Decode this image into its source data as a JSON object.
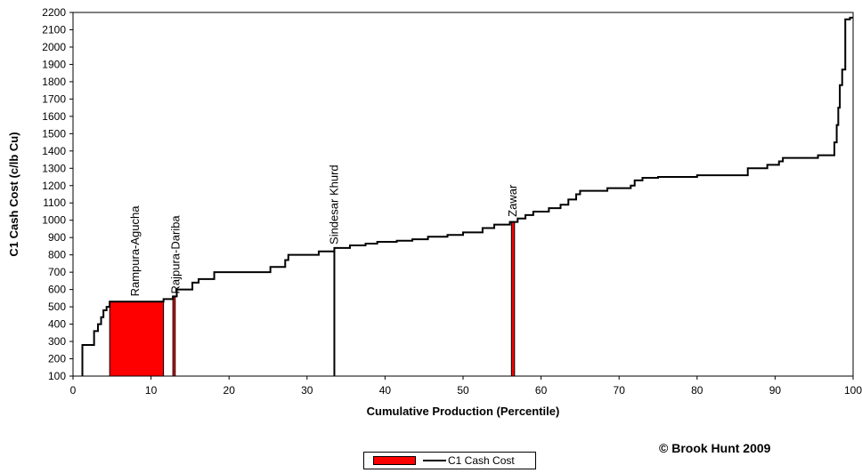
{
  "chart_data": {
    "type": "area",
    "title": "",
    "xlabel": "Cumulative Production (Percentile)",
    "ylabel": "C1 Cash Cost (c/lb Cu)",
    "xlim": [
      0,
      100
    ],
    "ylim": [
      100,
      2200
    ],
    "xticks": [
      0,
      10,
      20,
      30,
      40,
      50,
      60,
      70,
      80,
      90,
      100
    ],
    "yticks": [
      100,
      200,
      300,
      400,
      500,
      600,
      700,
      800,
      900,
      1000,
      1100,
      1200,
      1300,
      1400,
      1500,
      1600,
      1700,
      1800,
      1900,
      2000,
      2100,
      2200
    ],
    "grid": false,
    "legend_position": "bottom-center",
    "series": [
      {
        "name": "C1 Cash Cost",
        "color": "#000000",
        "steps": [
          [
            1.2,
            100
          ],
          [
            1.2,
            280
          ],
          [
            2.7,
            280
          ],
          [
            2.7,
            360
          ],
          [
            3.2,
            360
          ],
          [
            3.2,
            400
          ],
          [
            3.6,
            400
          ],
          [
            3.6,
            440
          ],
          [
            3.9,
            440
          ],
          [
            3.9,
            480
          ],
          [
            4.3,
            480
          ],
          [
            4.3,
            500
          ],
          [
            4.7,
            500
          ],
          [
            4.7,
            530
          ],
          [
            11.6,
            530
          ],
          [
            11.6,
            545
          ],
          [
            12.8,
            545
          ],
          [
            12.8,
            560
          ],
          [
            13.3,
            560
          ],
          [
            13.3,
            600
          ],
          [
            15.3,
            600
          ],
          [
            15.3,
            640
          ],
          [
            16.1,
            640
          ],
          [
            16.1,
            660
          ],
          [
            18.1,
            660
          ],
          [
            18.1,
            700
          ],
          [
            25.3,
            700
          ],
          [
            25.3,
            730
          ],
          [
            27.2,
            730
          ],
          [
            27.2,
            770
          ],
          [
            27.6,
            770
          ],
          [
            27.6,
            800
          ],
          [
            31.5,
            800
          ],
          [
            31.5,
            820
          ],
          [
            33.5,
            820
          ],
          [
            33.5,
            840
          ],
          [
            35.5,
            840
          ],
          [
            35.5,
            855
          ],
          [
            37.5,
            855
          ],
          [
            37.5,
            865
          ],
          [
            39.0,
            865
          ],
          [
            39.0,
            875
          ],
          [
            41.5,
            875
          ],
          [
            41.5,
            882
          ],
          [
            43.5,
            882
          ],
          [
            43.5,
            890
          ],
          [
            45.5,
            890
          ],
          [
            45.5,
            905
          ],
          [
            48.0,
            905
          ],
          [
            48.0,
            915
          ],
          [
            50.0,
            915
          ],
          [
            50.0,
            930
          ],
          [
            52.5,
            930
          ],
          [
            52.5,
            955
          ],
          [
            54.0,
            955
          ],
          [
            54.0,
            975
          ],
          [
            56.0,
            975
          ],
          [
            56.0,
            990
          ],
          [
            57.0,
            990
          ],
          [
            57.0,
            1010
          ],
          [
            58.0,
            1010
          ],
          [
            58.0,
            1030
          ],
          [
            59.0,
            1030
          ],
          [
            59.0,
            1050
          ],
          [
            61.0,
            1050
          ],
          [
            61.0,
            1070
          ],
          [
            62.5,
            1070
          ],
          [
            62.5,
            1090
          ],
          [
            63.5,
            1090
          ],
          [
            63.5,
            1120
          ],
          [
            64.5,
            1120
          ],
          [
            64.5,
            1150
          ],
          [
            65.0,
            1150
          ],
          [
            65.0,
            1170
          ],
          [
            68.5,
            1170
          ],
          [
            68.5,
            1185
          ],
          [
            71.5,
            1185
          ],
          [
            71.5,
            1200
          ],
          [
            72.0,
            1200
          ],
          [
            72.0,
            1230
          ],
          [
            73.0,
            1230
          ],
          [
            73.0,
            1245
          ],
          [
            75.0,
            1245
          ],
          [
            75.0,
            1250
          ],
          [
            80.0,
            1250
          ],
          [
            80.0,
            1260
          ],
          [
            86.5,
            1260
          ],
          [
            86.5,
            1300
          ],
          [
            89.0,
            1300
          ],
          [
            89.0,
            1320
          ],
          [
            90.5,
            1320
          ],
          [
            90.5,
            1340
          ],
          [
            91.0,
            1340
          ],
          [
            91.0,
            1360
          ],
          [
            95.5,
            1360
          ],
          [
            95.5,
            1375
          ],
          [
            97.6,
            1375
          ],
          [
            97.6,
            1450
          ],
          [
            97.9,
            1450
          ],
          [
            97.9,
            1550
          ],
          [
            98.1,
            1550
          ],
          [
            98.1,
            1650
          ],
          [
            98.3,
            1650
          ],
          [
            98.3,
            1780
          ],
          [
            98.6,
            1780
          ],
          [
            98.6,
            1870
          ],
          [
            99.0,
            1870
          ],
          [
            99.0,
            2160
          ],
          [
            99.6,
            2160
          ],
          [
            99.6,
            2170
          ],
          [
            100,
            2170
          ]
        ]
      },
      {
        "name": "",
        "color": "#ff0000",
        "bars": [
          {
            "x0": 4.7,
            "x1": 11.6,
            "value": 530
          },
          {
            "x0": 12.8,
            "x1": 13.1,
            "value": 560
          },
          {
            "x0": 56.2,
            "x1": 56.6,
            "value": 990
          }
        ]
      }
    ],
    "markers": [
      {
        "x": 33.5,
        "value": 830
      }
    ],
    "annotations": [
      {
        "text": "Rampura-Agucha",
        "x": 8.0,
        "y": 560
      },
      {
        "text": "Rajpura-Dariba",
        "x": 13.2,
        "y": 575
      },
      {
        "text": "Sindesar Khurd",
        "x": 33.5,
        "y": 860
      },
      {
        "text": "Zawar",
        "x": 56.4,
        "y": 1020
      }
    ]
  },
  "copyright": "© Brook Hunt 2009",
  "legend": {
    "bar_color": "#ff0000",
    "line_color": "#000000",
    "label": "C1 Cash Cost"
  }
}
